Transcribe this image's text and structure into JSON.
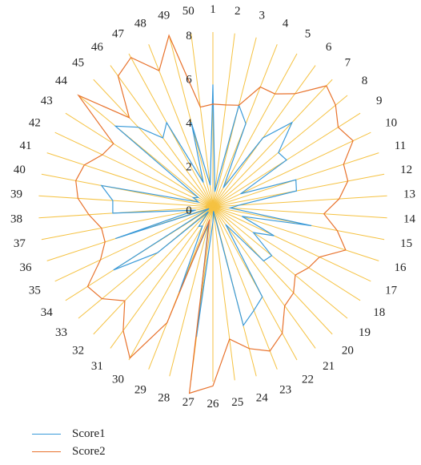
{
  "chart_data": {
    "type": "radar",
    "categories": [
      "1",
      "2",
      "3",
      "4",
      "5",
      "6",
      "7",
      "8",
      "9",
      "10",
      "11",
      "12",
      "13",
      "14",
      "15",
      "16",
      "17",
      "18",
      "19",
      "20",
      "21",
      "22",
      "23",
      "24",
      "25",
      "26",
      "27",
      "28",
      "29",
      "30",
      "31",
      "32",
      "33",
      "34",
      "35",
      "36",
      "37",
      "38",
      "39",
      "40",
      "41",
      "42",
      "43",
      "44",
      "45",
      "46",
      "47",
      "48",
      "49",
      "50"
    ],
    "rlim": [
      0,
      8
    ],
    "rticks": [
      0,
      2,
      4,
      6,
      8
    ],
    "series": [
      {
        "name": "Score1",
        "color": "#3a9ad9",
        "values": [
          5.6,
          0.7,
          4.8,
          4.1,
          1.0,
          3.9,
          5.3,
          3.9,
          4.0,
          1.4,
          4.0,
          3.9,
          1.2,
          0.8,
          4.6,
          1.4,
          3.1,
          2.2,
          3.5,
          3.4,
          1.0,
          4.7,
          5.1,
          5.6,
          0.2,
          0.7,
          6.0,
          0.8,
          4.2,
          1.0,
          1.1,
          0.3,
          3.3,
          5.4,
          0.2,
          4.7,
          0.8,
          4.6,
          4.6,
          5.2,
          0.7,
          1.0,
          0.8,
          5.8,
          5.0,
          3.9,
          4.4,
          1.2,
          4.0,
          1.0
        ]
      },
      {
        "name": "Score2",
        "color": "#e8722c",
        "values": [
          4.7,
          4.7,
          4.8,
          5.9,
          5.9,
          6.4,
          7.6,
          7.3,
          6.8,
          7.1,
          6.3,
          6.3,
          5.8,
          5.1,
          5.8,
          6.4,
          5.4,
          5.2,
          4.9,
          5.4,
          5.6,
          6.6,
          7.1,
          6.7,
          6.1,
          8.2,
          8.6,
          0.6,
          5.7,
          7.9,
          7.0,
          5.9,
          6.6,
          6.8,
          5.7,
          5.2,
          5.2,
          5.7,
          6.2,
          6.4,
          6.2,
          5.6,
          5.4,
          8.0,
          5.6,
          7.4,
          7.8,
          6.7,
          8.1,
          4.6
        ]
      }
    ],
    "legend": "bottom-left",
    "colors": {
      "spoke": "#f5c242",
      "text": "#222222"
    }
  }
}
